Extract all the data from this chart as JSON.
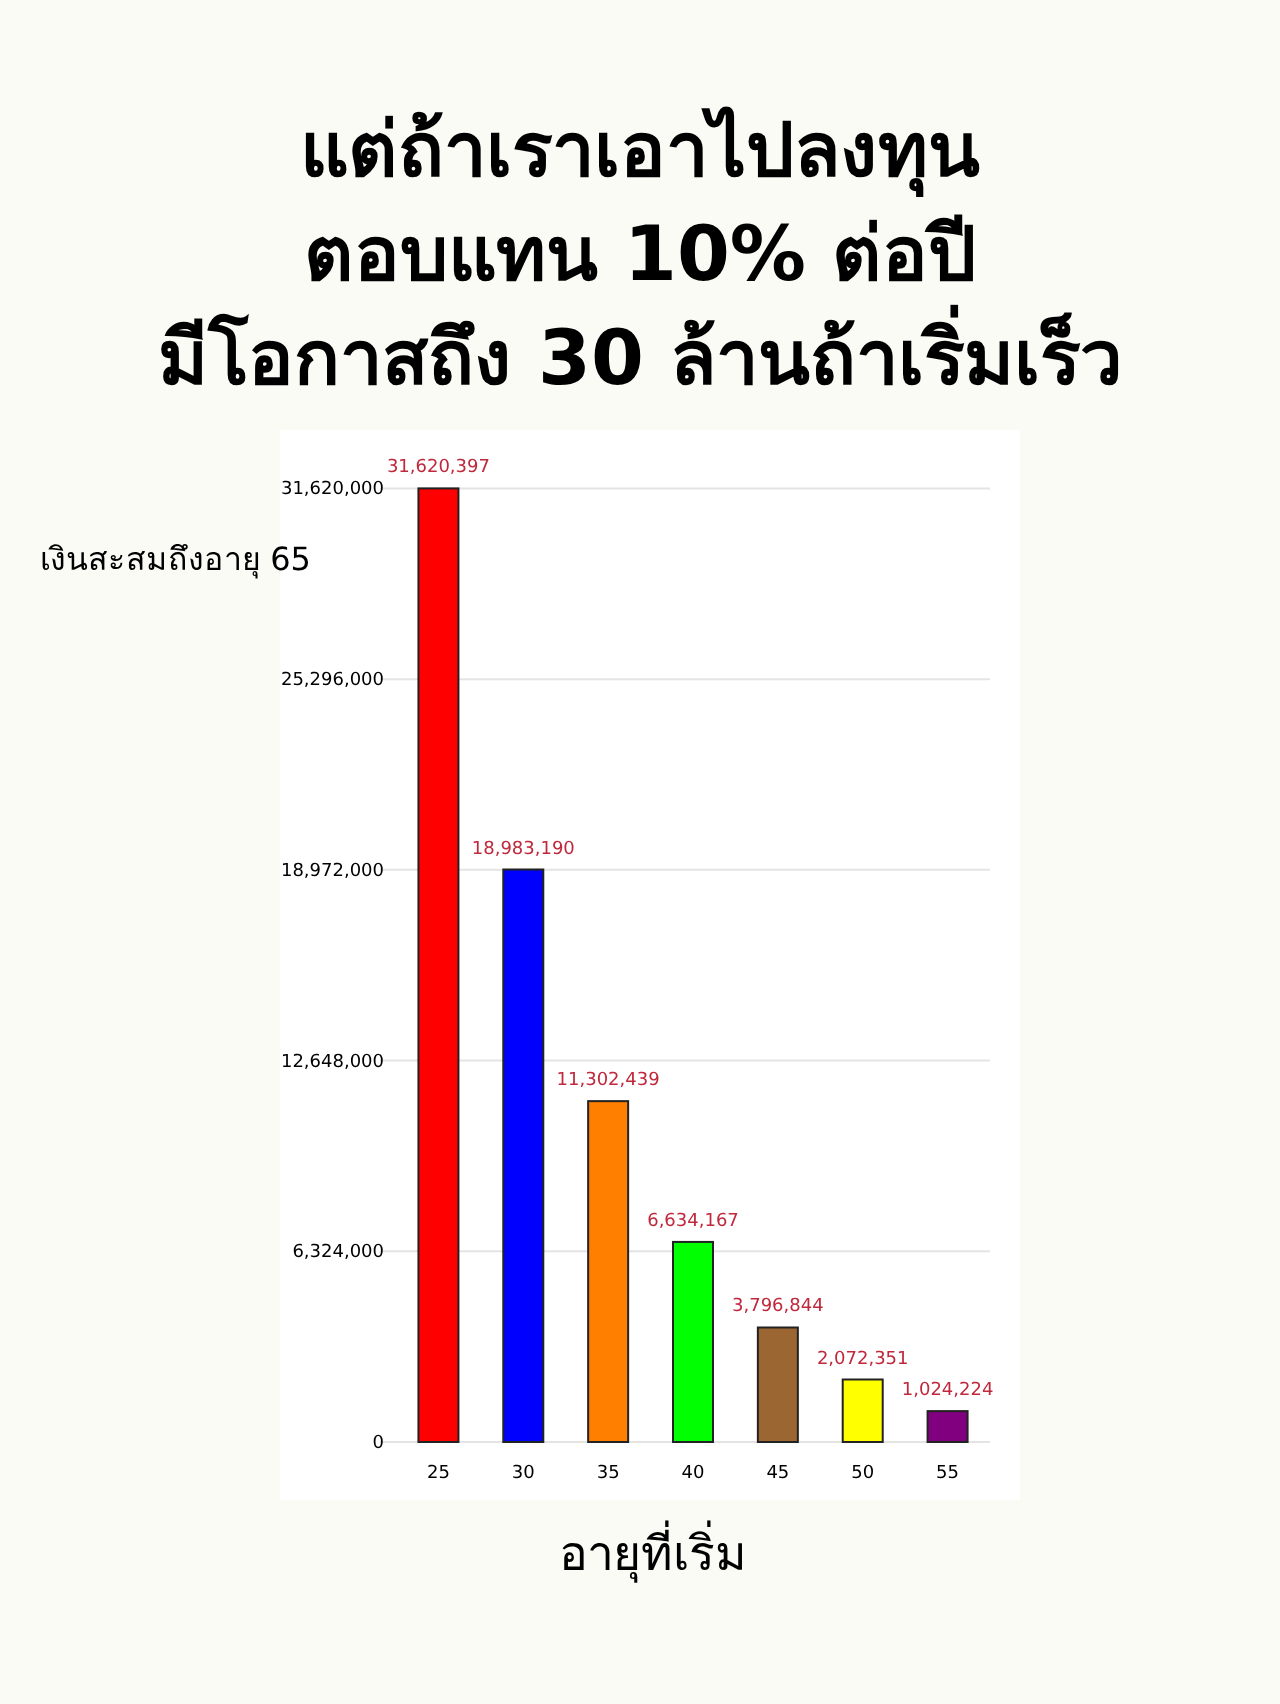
{
  "chart_data": {
    "type": "bar",
    "title": "แต่ถ้าเราเอาไปลงทุน\nตอบแทน 10% ต่อปี\nมีโอกาสถึง 30 ล้านถ้าเริ่มเร็ว",
    "ylabel": "เงินสะสมถึงอายุ 65",
    "xlabel": "อายุที่เริ่ม",
    "categories": [
      "25",
      "30",
      "35",
      "40",
      "45",
      "50",
      "55"
    ],
    "values": [
      31620397,
      18983190,
      11302439,
      6634167,
      3796844,
      2072351,
      1024224
    ],
    "colors": [
      "#ff0000",
      "#0000ff",
      "#ff8000",
      "#00ff00",
      "#9c6633",
      "#ffff00",
      "#800080"
    ],
    "ylim": [
      0,
      31700000
    ],
    "yticks": [
      {
        "value": 0,
        "label": "0"
      },
      {
        "value": 6324000,
        "label": "6,324,000"
      },
      {
        "value": 12648000,
        "label": "12,648,000"
      },
      {
        "value": 18972000,
        "label": "18,972,000"
      },
      {
        "value": 25296000,
        "label": "25,296,000"
      },
      {
        "value": 31620000,
        "label": "31,620,000"
      }
    ],
    "value_labels": [
      "31,620,397",
      "18,983,190",
      "11,302,439",
      "6,634,167",
      "3,796,844",
      "2,072,351",
      "1,024,224"
    ],
    "grid": "y"
  }
}
